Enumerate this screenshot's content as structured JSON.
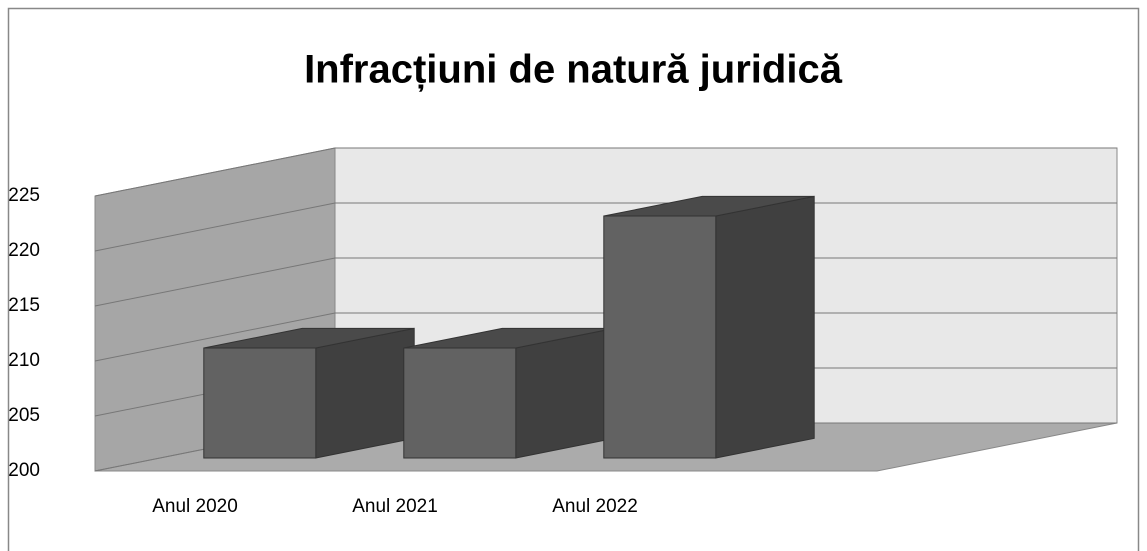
{
  "chart_data": {
    "type": "bar3d",
    "title": "Infracțiuni de natură juridică",
    "categories": [
      "Anul 2020",
      "Anul 2021",
      "Anul 2022"
    ],
    "values": [
      210,
      210,
      222
    ],
    "color": "#626262",
    "ylim": [
      200,
      225
    ],
    "yticks": [
      200,
      205,
      210,
      215,
      220,
      225
    ],
    "grid": true
  }
}
